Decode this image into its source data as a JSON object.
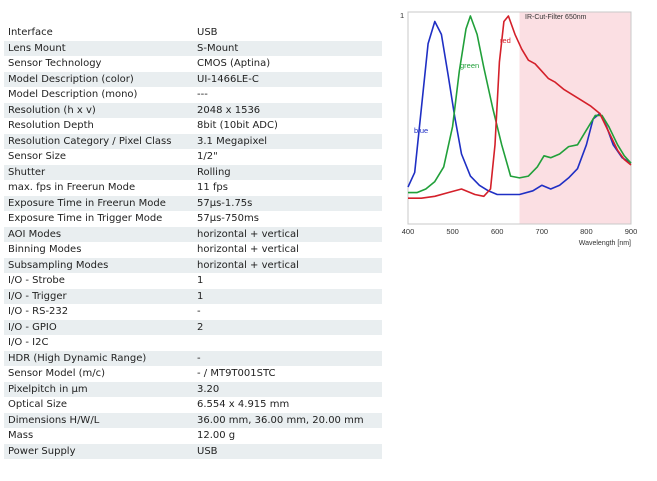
{
  "specs": [
    {
      "label": "Interface",
      "value": "USB"
    },
    {
      "label": "Lens Mount",
      "value": "S-Mount"
    },
    {
      "label": "Sensor Technology",
      "value": "CMOS (Aptina)"
    },
    {
      "label": "Model Description (color)",
      "value": "UI-1466LE-C"
    },
    {
      "label": "Model Description (mono)",
      "value": "---"
    },
    {
      "label": "Resolution (h x v)",
      "value": "2048 x 1536"
    },
    {
      "label": "Resolution Depth",
      "value": "8bit (10bit ADC)"
    },
    {
      "label": "Resolution Category / Pixel Class",
      "value": "3.1 Megapixel"
    },
    {
      "label": "Sensor Size",
      "value": "1/2\""
    },
    {
      "label": "Shutter",
      "value": "Rolling"
    },
    {
      "label": "max. fps in Freerun Mode",
      "value": "11 fps"
    },
    {
      "label": "Exposure Time in Freerun Mode",
      "value": "57µs-1.75s"
    },
    {
      "label": "Exposure Time in Trigger Mode",
      "value": "57µs-750ms"
    },
    {
      "label": "AOI Modes",
      "value": "horizontal + vertical"
    },
    {
      "label": "Binning Modes",
      "value": "horizontal + vertical"
    },
    {
      "label": "Subsampling Modes",
      "value": "horizontal + vertical"
    },
    {
      "label": "I/O - Strobe",
      "value": "1"
    },
    {
      "label": "I/O - Trigger",
      "value": "1"
    },
    {
      "label": "I/O - RS-232",
      "value": "-"
    },
    {
      "label": "I/O - GPIO",
      "value": "2"
    },
    {
      "label": "I/O - I2C",
      "value": ""
    },
    {
      "label": "HDR (High Dynamic Range)",
      "value": "-"
    },
    {
      "label": "Sensor Model (m/c)",
      "value": "- / MT9T001STC"
    },
    {
      "label": "Pixelpitch in µm",
      "value": "3.20"
    },
    {
      "label": "Optical Size",
      "value": "6.554 x 4.915 mm"
    },
    {
      "label": "Dimensions H/W/L",
      "value": "36.00 mm, 36.00 mm, 20.00 mm"
    },
    {
      "label": "Mass",
      "value": "12.00 g"
    },
    {
      "label": "Power Supply",
      "value": "USB"
    }
  ],
  "colors": {
    "row_alt": "#e9eef0",
    "ir_band": "#fbdfe3",
    "blue": "#1f2fc4",
    "green": "#21a03a",
    "red": "#d4202a"
  },
  "chart_data": {
    "type": "line",
    "title": "",
    "xlabel": "Wavelength [nm]",
    "ylabel": "",
    "xlim": [
      400,
      900
    ],
    "ylim": [
      0,
      1
    ],
    "x_ticks": [
      "400",
      "500",
      "600",
      "700",
      "800",
      "900"
    ],
    "y_ticks": [
      "1"
    ],
    "annotation": "IR-Cut-Filter 650nm",
    "ir_cut_start": 650,
    "series": [
      {
        "name": "blue",
        "color": "#1f2fc4",
        "points": [
          [
            400,
            0.07
          ],
          [
            415,
            0.15
          ],
          [
            430,
            0.5
          ],
          [
            445,
            0.85
          ],
          [
            460,
            0.97
          ],
          [
            475,
            0.9
          ],
          [
            490,
            0.68
          ],
          [
            505,
            0.45
          ],
          [
            520,
            0.25
          ],
          [
            540,
            0.13
          ],
          [
            560,
            0.08
          ],
          [
            580,
            0.05
          ],
          [
            600,
            0.03
          ],
          [
            620,
            0.03
          ],
          [
            650,
            0.03
          ],
          [
            680,
            0.05
          ],
          [
            700,
            0.08
          ],
          [
            720,
            0.06
          ],
          [
            740,
            0.08
          ],
          [
            760,
            0.12
          ],
          [
            780,
            0.17
          ],
          [
            800,
            0.3
          ],
          [
            815,
            0.44
          ],
          [
            830,
            0.47
          ],
          [
            845,
            0.4
          ],
          [
            860,
            0.3
          ],
          [
            880,
            0.23
          ],
          [
            900,
            0.2
          ]
        ]
      },
      {
        "name": "green",
        "color": "#21a03a",
        "points": [
          [
            400,
            0.04
          ],
          [
            420,
            0.04
          ],
          [
            440,
            0.06
          ],
          [
            460,
            0.1
          ],
          [
            480,
            0.18
          ],
          [
            500,
            0.4
          ],
          [
            515,
            0.7
          ],
          [
            530,
            0.93
          ],
          [
            540,
            1.0
          ],
          [
            555,
            0.9
          ],
          [
            570,
            0.72
          ],
          [
            590,
            0.5
          ],
          [
            610,
            0.3
          ],
          [
            630,
            0.13
          ],
          [
            650,
            0.12
          ],
          [
            670,
            0.13
          ],
          [
            690,
            0.18
          ],
          [
            705,
            0.24
          ],
          [
            720,
            0.23
          ],
          [
            740,
            0.25
          ],
          [
            760,
            0.29
          ],
          [
            780,
            0.3
          ],
          [
            800,
            0.38
          ],
          [
            820,
            0.46
          ],
          [
            835,
            0.46
          ],
          [
            850,
            0.4
          ],
          [
            870,
            0.3
          ],
          [
            885,
            0.24
          ],
          [
            900,
            0.2
          ]
        ]
      },
      {
        "name": "red",
        "color": "#d4202a",
        "points": [
          [
            400,
            0.01
          ],
          [
            430,
            0.01
          ],
          [
            460,
            0.02
          ],
          [
            490,
            0.04
          ],
          [
            520,
            0.06
          ],
          [
            550,
            0.03
          ],
          [
            570,
            0.02
          ],
          [
            585,
            0.06
          ],
          [
            595,
            0.3
          ],
          [
            605,
            0.75
          ],
          [
            615,
            0.97
          ],
          [
            625,
            1.0
          ],
          [
            640,
            0.9
          ],
          [
            655,
            0.82
          ],
          [
            670,
            0.76
          ],
          [
            685,
            0.74
          ],
          [
            700,
            0.7
          ],
          [
            715,
            0.66
          ],
          [
            730,
            0.64
          ],
          [
            750,
            0.6
          ],
          [
            770,
            0.57
          ],
          [
            790,
            0.54
          ],
          [
            810,
            0.51
          ],
          [
            830,
            0.47
          ],
          [
            850,
            0.37
          ],
          [
            870,
            0.27
          ],
          [
            885,
            0.22
          ],
          [
            900,
            0.19
          ]
        ]
      }
    ]
  }
}
